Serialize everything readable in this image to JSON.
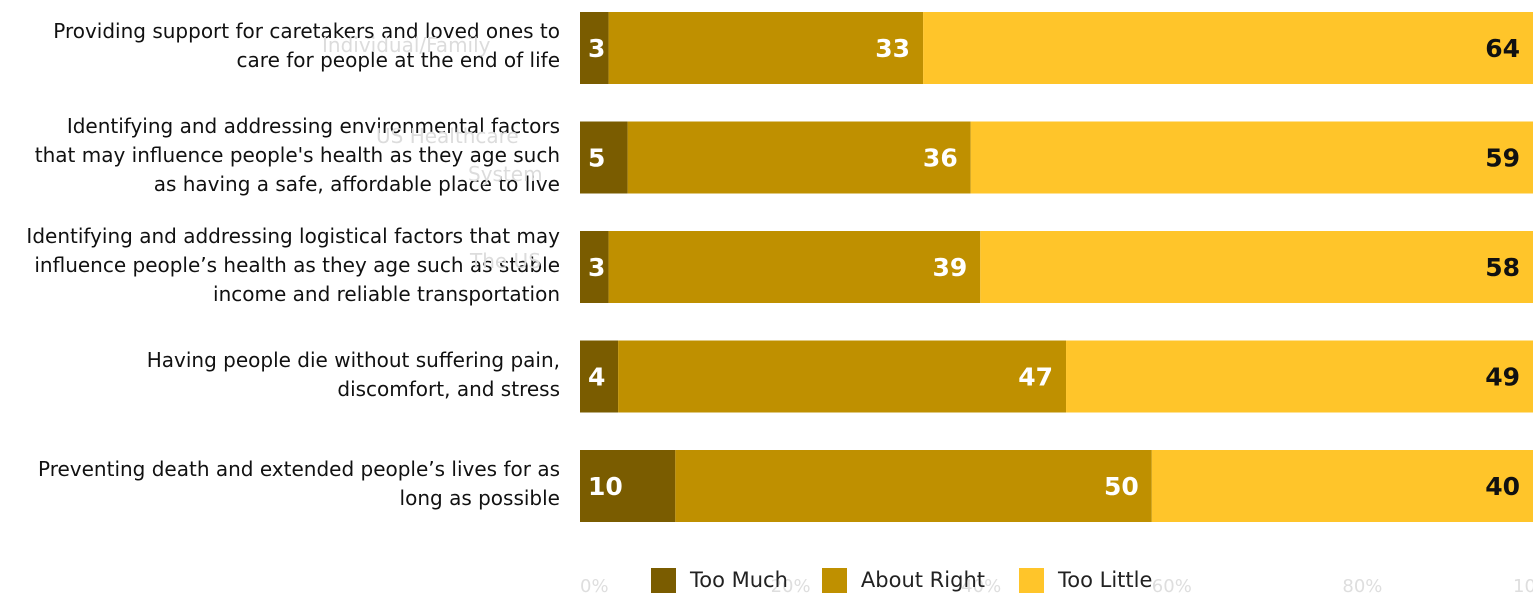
{
  "chart_data": {
    "type": "bar",
    "orientation": "horizontal",
    "stacked": true,
    "categories": [
      [
        "Providing support for caretakers and loved ones to",
        "care for people at the end of life"
      ],
      [
        "Identifying and addressing environmental factors",
        "that may influence people's health as they age such",
        "as having a safe, affordable place to live"
      ],
      [
        "Identifying and addressing logistical factors that may",
        "influence people’s health as they age such as stable",
        "income and reliable transportation"
      ],
      [
        "Having people die without suffering pain,",
        "discomfort, and stress"
      ],
      [
        "Preventing death and extended people’s lives for as",
        "long as possible"
      ]
    ],
    "series": [
      {
        "name": "Too Much",
        "color": "#7a5c00",
        "label_color": "#ffffff",
        "values": [
          3,
          5,
          3,
          4,
          10
        ]
      },
      {
        "name": "About Right",
        "color": "#bf9000",
        "label_color": "#ffffff",
        "values": [
          33,
          36,
          39,
          47,
          50
        ]
      },
      {
        "name": "Too Little",
        "color": "#ffc52a",
        "label_color": "#111111",
        "values": [
          64,
          59,
          58,
          49,
          40
        ]
      }
    ],
    "xlim": [
      0,
      100
    ],
    "x_tick_labels": [
      "0%",
      "20%",
      "40%",
      "60%",
      "80%",
      "10"
    ],
    "grid": false,
    "legend_position": "bottom",
    "background_text": [
      "Individual/Family",
      "US Healthcare",
      "System",
      "The US"
    ]
  }
}
